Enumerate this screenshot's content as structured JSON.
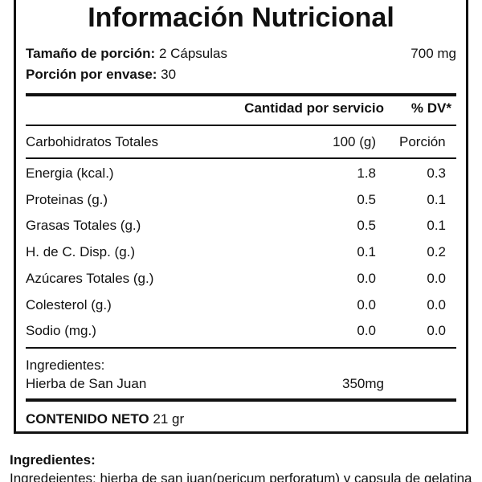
{
  "header": {
    "title": "Información Nutricional",
    "serving_size_label": "Tamaño de porción:",
    "serving_size": "2 Cápsulas",
    "serving_weight": "700 mg",
    "servings_label": "Porción por envase:",
    "servings": "30"
  },
  "table": {
    "columns": [
      "Cantidad por servicio",
      "% DV*"
    ],
    "subheader": [
      "Carbohidratos Totales",
      "100 (g)",
      "Porción"
    ],
    "rows": [
      [
        "Energia (kcal.)",
        "1.8",
        "0.3"
      ],
      [
        "Proteinas (g.)",
        "0.5",
        "0.1"
      ],
      [
        "Grasas Totales  (g.)",
        "0.5",
        "0.1"
      ],
      [
        "H. de C. Disp. (g.)",
        "0.1",
        "0.2"
      ],
      [
        "Azúcares Totales (g.)",
        "0.0",
        "0.0"
      ],
      [
        "Colesterol (g.)",
        "0.0",
        "0.0"
      ],
      [
        "Sodio (mg.)",
        "0.0",
        "0.0"
      ]
    ]
  },
  "ingredients_box": {
    "label": "Ingredientes:",
    "item": "Hierba de San Juan",
    "amount": "350mg"
  },
  "net_content": {
    "label": "CONTENIDO NETO",
    "value": "21 gr"
  },
  "footer": {
    "title": "Ingredientes:",
    "text": "Ingredeientes: hierba de san juan(pericum perforatum) y capsula de gelatina"
  }
}
